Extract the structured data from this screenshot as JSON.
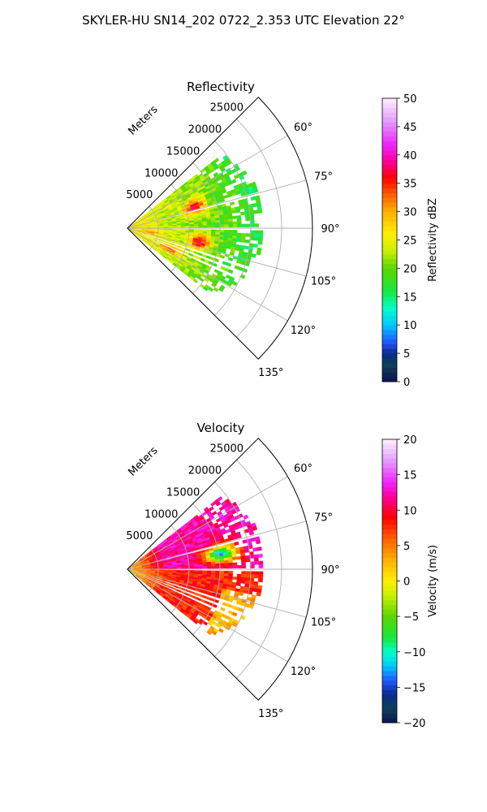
{
  "figure": {
    "title": "SKYLER-HU  SN14_202  0722_2.353 UTC Elevation 22°"
  },
  "chart_data": [
    {
      "type": "heatmap",
      "projection": "polar-sector",
      "title": "Reflectivity",
      "range_axis_label": "Meters",
      "range_ticks": [
        5000,
        10000,
        15000,
        20000,
        25000
      ],
      "range_tick_labels": [
        "5000",
        "10000",
        "15000",
        "20000",
        "25000"
      ],
      "rmax": 30000,
      "azimuth_range_deg": [
        45,
        135
      ],
      "azimuth_ticks_deg": [
        60,
        75,
        90,
        105,
        120,
        135
      ],
      "azimuth_tick_labels": [
        "60°",
        "75°",
        "90°",
        "105°",
        "120°",
        "135°"
      ],
      "grid": true,
      "colorbar": {
        "label": "Reflectivity dBZ",
        "min": 0,
        "max": 50,
        "ticks": [
          0,
          5,
          10,
          15,
          20,
          25,
          30,
          35,
          40,
          45,
          50
        ],
        "tick_labels": [
          "0",
          "5",
          "10",
          "15",
          "20",
          "25",
          "30",
          "35",
          "40",
          "45",
          "50"
        ],
        "colormap": "pyart_HomeyerRainbow-like",
        "stops": [
          [
            0,
            "#0a1550"
          ],
          [
            3,
            "#10405a"
          ],
          [
            5,
            "#0a2a8a"
          ],
          [
            7,
            "#1f58ff"
          ],
          [
            10,
            "#00c8ff"
          ],
          [
            13,
            "#00ffc8"
          ],
          [
            16,
            "#18e840"
          ],
          [
            20,
            "#5ad700"
          ],
          [
            23,
            "#c8f000"
          ],
          [
            26,
            "#fff000"
          ],
          [
            30,
            "#ffb000"
          ],
          [
            33,
            "#ff6000"
          ],
          [
            36,
            "#ff0000"
          ],
          [
            39,
            "#ff00a0"
          ],
          [
            42,
            "#ee28ff"
          ],
          [
            46,
            "#e49cff"
          ],
          [
            50,
            "#fff0ff"
          ]
        ]
      },
      "field_profile": {
        "values_by_range_m": [
          [
            0,
            27
          ],
          [
            5000,
            24
          ],
          [
            10000,
            22
          ],
          [
            15000,
            20
          ],
          [
            20000,
            17
          ],
          [
            25000,
            15
          ]
        ],
        "hotspots": [
          {
            "range_m": 11000,
            "azimuth_deg": 72,
            "value": 37
          },
          {
            "range_m": 11500,
            "azimuth_deg": 100,
            "value": 36
          },
          {
            "range_m": 7500,
            "azimuth_deg": 115,
            "value": 33
          },
          {
            "range_m": 3500,
            "azimuth_deg": 100,
            "value": 30
          }
        ],
        "data_extent_m": 22000,
        "data_azimuth_deg": [
          52,
          128
        ]
      }
    },
    {
      "type": "heatmap",
      "projection": "polar-sector",
      "title": "Velocity",
      "range_axis_label": "Meters",
      "range_ticks": [
        5000,
        10000,
        15000,
        20000,
        25000
      ],
      "range_tick_labels": [
        "5000",
        "10000",
        "15000",
        "20000",
        "25000"
      ],
      "rmax": 30000,
      "azimuth_range_deg": [
        45,
        135
      ],
      "azimuth_ticks_deg": [
        60,
        75,
        90,
        105,
        120,
        135
      ],
      "azimuth_tick_labels": [
        "60°",
        "75°",
        "90°",
        "105°",
        "120°",
        "135°"
      ],
      "grid": true,
      "colorbar": {
        "label": "Velocity (m/s)",
        "min": -20,
        "max": 20,
        "ticks": [
          -20,
          -15,
          -10,
          -5,
          0,
          5,
          10,
          15,
          20
        ],
        "tick_labels": [
          "−20",
          "−15",
          "−10",
          "−5",
          "0",
          "5",
          "10",
          "15",
          "20"
        ],
        "colormap": "pyart_BuDRd-like",
        "stops": [
          [
            -20,
            "#0a1550"
          ],
          [
            -18,
            "#10405a"
          ],
          [
            -16,
            "#0a2a8a"
          ],
          [
            -14,
            "#1f58ff"
          ],
          [
            -12,
            "#00c8ff"
          ],
          [
            -10,
            "#00ffc8"
          ],
          [
            -8,
            "#18e840"
          ],
          [
            -5,
            "#5ad700"
          ],
          [
            -2,
            "#c8f000"
          ],
          [
            0,
            "#fff000"
          ],
          [
            3,
            "#ffb000"
          ],
          [
            6,
            "#ff6000"
          ],
          [
            9,
            "#ff0000"
          ],
          [
            12,
            "#ff00a0"
          ],
          [
            14,
            "#ee28ff"
          ],
          [
            17,
            "#e49cff"
          ],
          [
            20,
            "#fff0ff"
          ]
        ]
      },
      "field_profile": {
        "upper_sector_value": 12,
        "lower_sector_value": 8,
        "near_field_value": 2,
        "far_lower_value": 1,
        "core_value": -12,
        "data_extent_m": 22000,
        "data_azimuth_deg": [
          52,
          128
        ]
      }
    }
  ]
}
